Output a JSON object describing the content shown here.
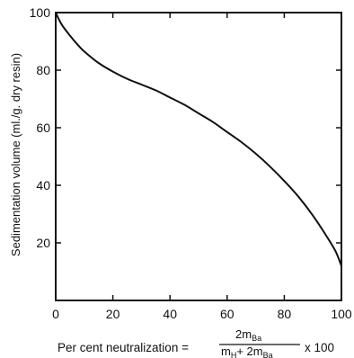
{
  "chart_data": {
    "type": "line",
    "title": "",
    "xlabel": "Per cent neutralization",
    "ylabel": "Sedimentation volume (ml./g. dry resin)",
    "xlabel_formula": {
      "prefix": "Per cent neutralization =",
      "numerator": "2m",
      "numerator_sub": "Ba",
      "denominator_a": "m",
      "denominator_a_sub": "H",
      "denominator_plus": "+ 2m",
      "denominator_b_sub": "Ba",
      "multiplier": "x 100"
    },
    "xlim": [
      0,
      100
    ],
    "ylim": [
      0,
      100
    ],
    "xticks": [
      0,
      20,
      40,
      60,
      80,
      100
    ],
    "yticks": [
      20,
      40,
      60,
      80,
      100
    ],
    "grid": false,
    "series": [
      {
        "x": [
          0,
          2,
          5,
          8,
          10,
          15,
          20,
          25,
          30,
          35,
          40,
          45,
          50,
          55,
          60,
          65,
          70,
          75,
          80,
          85,
          90,
          95,
          98,
          100
        ],
        "y": [
          100,
          96,
          92,
          88.5,
          86.5,
          82.5,
          79.5,
          77,
          75,
          73,
          70.5,
          68,
          65,
          62,
          58.5,
          55,
          51,
          46.5,
          41.5,
          36,
          29.5,
          22,
          17,
          12
        ]
      }
    ]
  }
}
